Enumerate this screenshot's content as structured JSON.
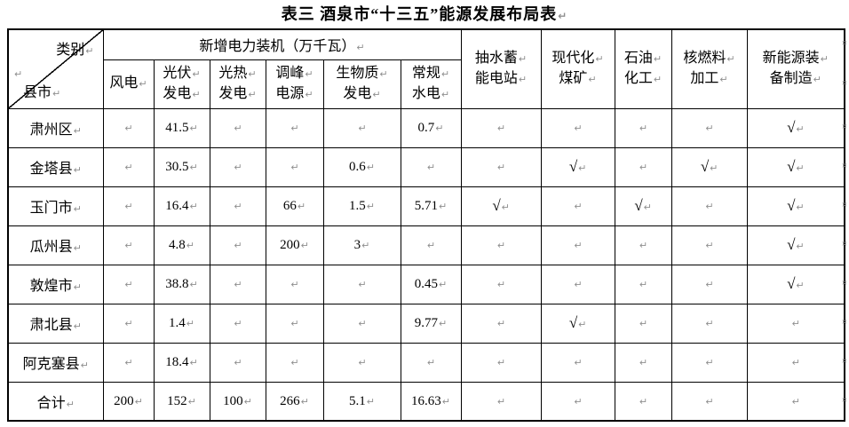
{
  "title": "表三 酒泉市“十三五”能源发展布局表",
  "marks": {
    "paragraph": "↵",
    "row_end": "¤"
  },
  "table": {
    "corner": {
      "top_right": "类别",
      "bottom_left": "县市"
    },
    "group_header": "新增电力装机（万千瓦）",
    "power_columns": [
      {
        "label": "风电",
        "lines": [
          "风电"
        ]
      },
      {
        "label": "光伏发电",
        "lines": [
          "光伏",
          "发电"
        ]
      },
      {
        "label": "光热发电",
        "lines": [
          "光热",
          "发电"
        ]
      },
      {
        "label": "调峰电源",
        "lines": [
          "调峰",
          "电源"
        ]
      },
      {
        "label": "生物质发电",
        "lines": [
          "生物质",
          "发电"
        ]
      },
      {
        "label": "常规水电",
        "lines": [
          "常规",
          "水电"
        ]
      }
    ],
    "other_columns": [
      {
        "label": "抽水蓄能电站",
        "lines": [
          "抽水蓄",
          "能电站"
        ]
      },
      {
        "label": "现代化煤矿",
        "lines": [
          "现代化",
          "煤矿"
        ]
      },
      {
        "label": "石油化工",
        "lines": [
          "石油",
          "化工"
        ]
      },
      {
        "label": "核燃料加工",
        "lines": [
          "核燃料",
          "加工"
        ]
      },
      {
        "label": "新能源装备制造",
        "lines": [
          "新能源装",
          "备制造"
        ]
      }
    ],
    "check_symbol": "√",
    "rows": [
      {
        "name": "肃州区",
        "values": [
          "",
          "41.5",
          "",
          "",
          "",
          "0.7",
          "",
          "",
          "",
          "",
          "√"
        ]
      },
      {
        "name": "金塔县",
        "values": [
          "",
          "30.5",
          "",
          "",
          "0.6",
          "",
          "",
          "√",
          "",
          "√",
          "√"
        ]
      },
      {
        "name": "玉门市",
        "values": [
          "",
          "16.4",
          "",
          "66",
          "1.5",
          "5.71",
          "√",
          "",
          "√",
          "",
          "√"
        ]
      },
      {
        "name": "瓜州县",
        "values": [
          "",
          "4.8",
          "",
          "200",
          "3",
          "",
          "",
          "",
          "",
          "",
          "√"
        ]
      },
      {
        "name": "敦煌市",
        "values": [
          "",
          "38.8",
          "",
          "",
          "",
          "0.45",
          "",
          "",
          "",
          "",
          "√"
        ]
      },
      {
        "name": "肃北县",
        "values": [
          "",
          "1.4",
          "",
          "",
          "",
          "9.77",
          "",
          "√",
          "",
          "",
          ""
        ]
      },
      {
        "name": "阿克塞县",
        "values": [
          "",
          "18.4",
          "",
          "",
          "",
          "",
          "",
          "",
          "",
          "",
          ""
        ]
      },
      {
        "name": "合计",
        "values": [
          "200",
          "152",
          "100",
          "266",
          "5.1",
          "16.63",
          "",
          "",
          "",
          "",
          ""
        ]
      }
    ]
  }
}
